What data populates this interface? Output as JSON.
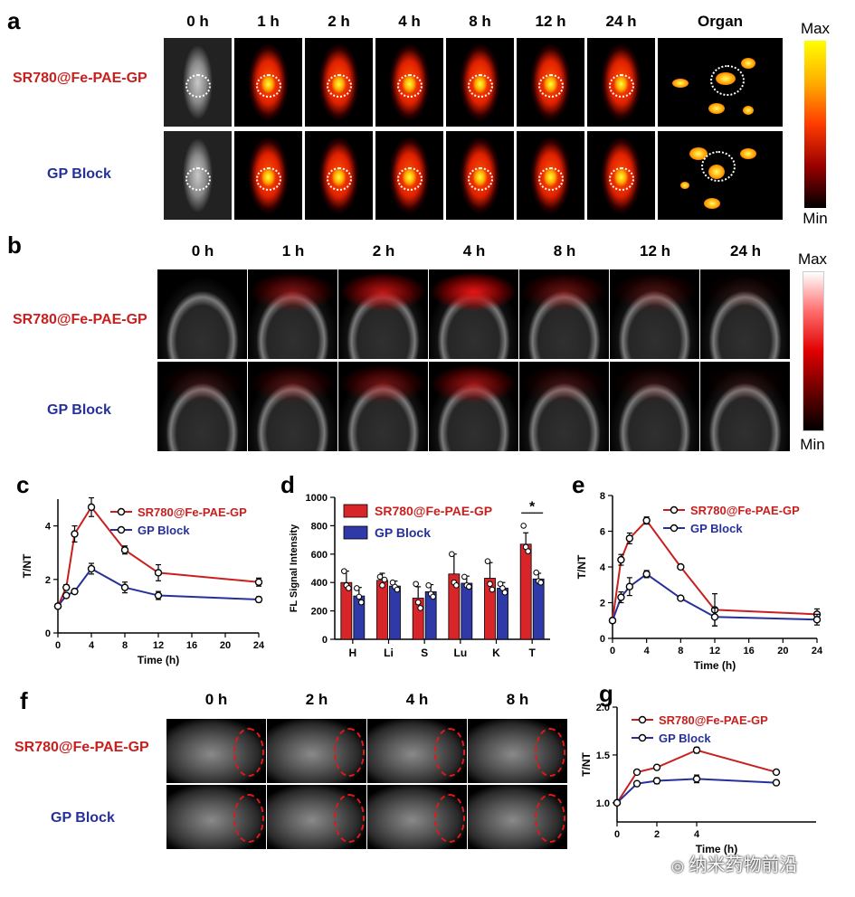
{
  "panel_a": {
    "label": "a",
    "time_headers": [
      "0 h",
      "1 h",
      "2 h",
      "4 h",
      "8 h",
      "12 h",
      "24 h"
    ],
    "organ_header": "Organ",
    "rows": [
      "SR780@Fe-PAE-GP",
      "GP Block"
    ],
    "scale_max": "Max",
    "scale_min": "Min"
  },
  "panel_b": {
    "label": "b",
    "time_headers": [
      "0 h",
      "1 h",
      "2 h",
      "4 h",
      "8 h",
      "12 h",
      "24 h"
    ],
    "rows": [
      "SR780@Fe-PAE-GP",
      "GP Block"
    ],
    "scale_max": "Max",
    "scale_min": "Min"
  },
  "panel_f": {
    "label": "f",
    "time_headers": [
      "0 h",
      "2 h",
      "4 h",
      "8 h"
    ],
    "rows": [
      "SR780@Fe-PAE-GP",
      "GP Block"
    ]
  },
  "colors": {
    "red": "#c8201f",
    "blue": "#26309a"
  },
  "watermark": "纳米药物前沿",
  "chart_data": [
    {
      "id": "c",
      "label": "c",
      "type": "line",
      "xlabel": "Time (h)",
      "ylabel": "T/NT",
      "xlim": [
        0,
        24
      ],
      "ylim": [
        0,
        5
      ],
      "xticks": [
        0,
        4,
        8,
        12,
        16,
        20,
        24
      ],
      "yticks": [
        0,
        2,
        4
      ],
      "series": [
        {
          "name": "SR780@Fe-PAE-GP",
          "color": "#c8201f",
          "x": [
            0,
            1,
            2,
            4,
            8,
            12,
            24
          ],
          "y": [
            1.0,
            1.7,
            3.7,
            4.7,
            3.1,
            2.25,
            1.9
          ],
          "err": [
            0.05,
            0.1,
            0.3,
            0.35,
            0.15,
            0.3,
            0.15
          ]
        },
        {
          "name": "GP Block",
          "color": "#26309a",
          "x": [
            0,
            1,
            2,
            4,
            8,
            12,
            24
          ],
          "y": [
            1.0,
            1.4,
            1.55,
            2.4,
            1.7,
            1.4,
            1.25
          ],
          "err": [
            0.05,
            0.05,
            0.05,
            0.2,
            0.2,
            0.15,
            0.1
          ]
        }
      ]
    },
    {
      "id": "d",
      "label": "d",
      "type": "bar",
      "xlabel": "",
      "ylabel": "FL Signal Intensity",
      "ylim": [
        0,
        1000
      ],
      "yticks": [
        0,
        200,
        400,
        600,
        800,
        1000
      ],
      "categories": [
        "H",
        "Li",
        "S",
        "Lu",
        "K",
        "T"
      ],
      "significance": {
        "category": "T",
        "text": "*"
      },
      "series": [
        {
          "name": "SR780@Fe-PAE-GP",
          "color": "#d8252a",
          "values": [
            400,
            415,
            290,
            460,
            430,
            670
          ],
          "err": [
            80,
            50,
            80,
            140,
            110,
            80
          ],
          "points": [
            [
              480,
              380,
              360
            ],
            [
              440,
              380,
              420
            ],
            [
              390,
              260,
              220
            ],
            [
              600,
              400,
              380
            ],
            [
              550,
              390,
              350
            ],
            [
              800,
              650,
              620
            ]
          ]
        },
        {
          "name": "GP Block",
          "color": "#2f3aa8",
          "values": [
            305,
            375,
            335,
            395,
            360,
            425
          ],
          "err": [
            60,
            35,
            50,
            50,
            40,
            40
          ],
          "points": [
            [
              360,
              300,
              260
            ],
            [
              400,
              370,
              350
            ],
            [
              380,
              320,
              300
            ],
            [
              440,
              380,
              370
            ],
            [
              390,
              360,
              330
            ],
            [
              470,
              410,
              400
            ]
          ]
        }
      ]
    },
    {
      "id": "e",
      "label": "e",
      "type": "line",
      "xlabel": "Time (h)",
      "ylabel": "T/NT",
      "xlim": [
        0,
        24
      ],
      "ylim": [
        0,
        8
      ],
      "xticks": [
        0,
        4,
        8,
        12,
        16,
        20,
        24
      ],
      "yticks": [
        0,
        2,
        4,
        6,
        8
      ],
      "series": [
        {
          "name": "SR780@Fe-PAE-GP",
          "color": "#c8201f",
          "x": [
            0,
            1,
            2,
            4,
            8,
            12,
            24
          ],
          "y": [
            1.0,
            4.4,
            5.6,
            6.6,
            4.0,
            1.6,
            1.35
          ],
          "err": [
            0.05,
            0.3,
            0.3,
            0.2,
            0.1,
            0.9,
            0.3
          ]
        },
        {
          "name": "GP Block",
          "color": "#26309a",
          "x": [
            0,
            1,
            2,
            4,
            8,
            12,
            24
          ],
          "y": [
            1.0,
            2.3,
            2.9,
            3.6,
            2.25,
            1.2,
            1.05
          ],
          "err": [
            0.05,
            0.3,
            0.5,
            0.2,
            0.1,
            0.5,
            0.3
          ]
        }
      ]
    },
    {
      "id": "g",
      "label": "g",
      "type": "line",
      "xlabel": "Time (h)",
      "ylabel": "T/NT",
      "xlim": [
        0,
        10
      ],
      "ylim": [
        0.8,
        2.0
      ],
      "xticks": [
        0,
        2,
        4
      ],
      "yticks": [
        1.0,
        1.5,
        2.0
      ],
      "yticklabels": [
        "1.0",
        "1.5",
        "2.0"
      ],
      "series": [
        {
          "name": "SR780@Fe-PAE-GP",
          "color": "#c8201f",
          "x": [
            0,
            1,
            2,
            4,
            8
          ],
          "y": [
            1.0,
            1.32,
            1.37,
            1.55,
            1.32
          ],
          "err": [
            0.01,
            0.02,
            0.01,
            0.03,
            0.01
          ]
        },
        {
          "name": "GP Block",
          "color": "#26309a",
          "x": [
            0,
            1,
            2,
            4,
            8
          ],
          "y": [
            1.0,
            1.2,
            1.23,
            1.25,
            1.21
          ],
          "err": [
            0.01,
            0.02,
            0.03,
            0.04,
            0.01
          ]
        }
      ]
    }
  ]
}
